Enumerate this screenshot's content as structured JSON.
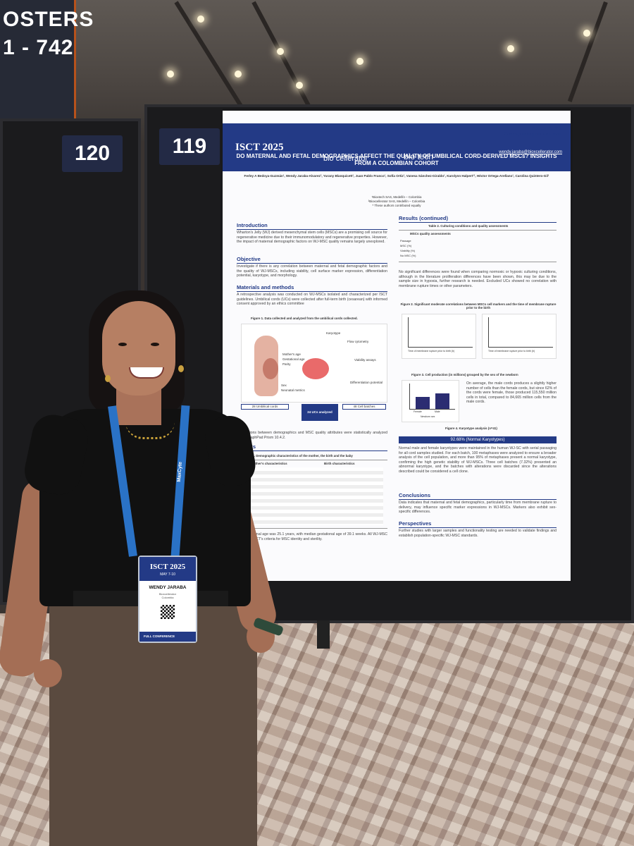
{
  "scene": {
    "banner_text": "OSTERS\n1 - 742",
    "board_numbers": [
      "120",
      "119"
    ]
  },
  "poster": {
    "conference_logo": "ISCT 2025",
    "logo_left": "bio cellerator",
    "logo_right": "bio tech",
    "poster_id": "Poster ID: 119",
    "corresponding": "Corresponding author Email:",
    "email": "wendy.jaraba@bioxcellerator.com",
    "title": "DO MATERNAL AND FETAL DEMOGRAPHICS AFFECT THE QUALITY OF UMBILICAL CORD-DERIVED MSCs? INSIGHTS FROM A COLOMBIAN COHORT",
    "authors": "Ferley A Bedoya-Guzmán¹, Wendy Jaraba-Alvarez², Yurany Blanquicett¹, Juan Pablo Franco¹, Sofía Ortiz¹, Vanesa Sánchez-Giraldo¹, Karolynn Halpert¹², Héctor Ortega-Arellano¹, Carolina Quintero-Gil¹",
    "affiliations": [
      "¹Bioxtech SAS, Medellín – Colombia",
      "²Bioxcellerator SAS, Medellín – Colombia",
      "* These authors contributed equally"
    ],
    "sections": {
      "introduction": "Introduction",
      "objective": "Objective",
      "methods": "Materials and methods",
      "results": "Results",
      "results_cont": "Results (continued)",
      "conclusions": "Conclusions",
      "perspectives": "Perspectives"
    },
    "intro_text": "Wharton's Jelly (WJ) derived mesenchymal stem cells (MSCs) are a promising cell source for regenerative medicine due to their immunomodulatory and regenerative properties. However, the impact of maternal demographic factors on WJ-MSC quality remains largely unexplored.",
    "objective_text": "Investigate if there is any correlation between maternal and fetal demographic factors and the quality of WJ-MSCs, including viability, cell surface marker expression, differentiation potential, karyotype, and morphology.",
    "methods_text": "A retrospective analysis was conducted on WJ-MSCs isolated and characterized per ISCT guidelines. Umbilical cords (UCs) were collected after full-term birth (cesarean) with informed consent approved by an ethics committee",
    "fig1_caption": "Figure 1. Data collected and analyzed from the umbilical cords collected.",
    "fig1_labels": {
      "karyotype": "Karyotype",
      "flow": "Flow cytometry",
      "mother": "Mother's age",
      "gestational": "Gestational age",
      "parity": "Parity",
      "viability": "Viability assays",
      "sex": "Sex",
      "neonatal": "Neonatal metrics",
      "differentiation": "Differentiation potential"
    },
    "flow_box": {
      "cords": "28 Umbilical cords",
      "analyzed": "24 UCs analyzed",
      "batches": "48 Cell batches"
    },
    "methods_text2": "Correlations between demographics and MSC quality attributes were statistically analyzed using GraphPad Prism 10.4.2.",
    "table1_caption": "Table 1. Demographic characteristics of the mother, the birth and the baby",
    "table1_headers": [
      "Mother's characteristics",
      "Birth characteristics"
    ],
    "results_text": "Mean maternal age was 25.1 years, with median gestational age of 39.1 weeks. All WJ-MSC lines met ISCT's criteria for MSC identity and sterility.",
    "table2_caption": "Table 2. Culturing conditions and quality assessments",
    "table2_header": "MSCs quality assessments",
    "table2_rows": [
      "Passage",
      "MSC (%)",
      "Viability (%)",
      "No MSC (%)"
    ],
    "results_cont_text": "No significant differences were found when comparing normoxic or hypoxic culturing conditions, although in the literature proliferation differences have been shown, this may be due to the sample size in hypoxia, further research is needed. Excluded UCs showed no correlation with membrane rupture times or other parameters.",
    "fig2_caption": "Figure 2. Significant moderate correlations between MSCs cell markers and the time of membrane rupture prior to the birth",
    "fig2_xlabel": "Time of membrane rupture prior to birth (h)",
    "fig3_caption": "Figure 3. Cell production (in millions) grouped by the sex of the newborn",
    "fig3_xlabel": "Newborn sex",
    "fig3_categories": [
      "Female",
      "Male"
    ],
    "fig3_text": "On average, the male cords produces a slightly higher number of cells than the female cords, but since 62% of the cords were female, those produced 115,550 million cells in total, compared to 84,665 million cells from the male cords.",
    "fig4_caption": "Figure 4. Karyotype analysis (n=41)",
    "karyotype_bar": "92.68% (Normal Karyotypes)",
    "karyotype_text": "Normal male and female karyotypes were maintained in the human WJ-SC with serial passaging for all cord samples studied. For each batch, 100 metaphases were analyzed to ensure a broader analysis of the cell population, and more than 95% of metaphases present a normal karyotype, confirming the high genetic stability of WJ-MSCs. Three cell batches (7.32%) presented an abnormal karyotype, and the batches with alterations were discarded since the alterations described could be considered a cell clone.",
    "conclusions_text": "Data indicates that maternal and fetal demographics, particularly time from membrane rupture to delivery, may influence specific marker expressions in WJ-MSCs. Markers also exhibit sex-specific differences.",
    "perspectives_text": "Further studies with larger samples and functionality testing are needed to validate findings and establish population-specific WJ-MSC standards."
  },
  "badge": {
    "logo": "ISCT 2025",
    "dates": "MAY 7-10",
    "name": "WENDY JARABA",
    "org": "Bioxcellerator\nColombia",
    "footer": "FULL CONFERENCE",
    "lanyard_text": "MaxCyte"
  },
  "colors": {
    "poster_blue": "#233a86",
    "lanyard_blue": "#2a72c6"
  }
}
